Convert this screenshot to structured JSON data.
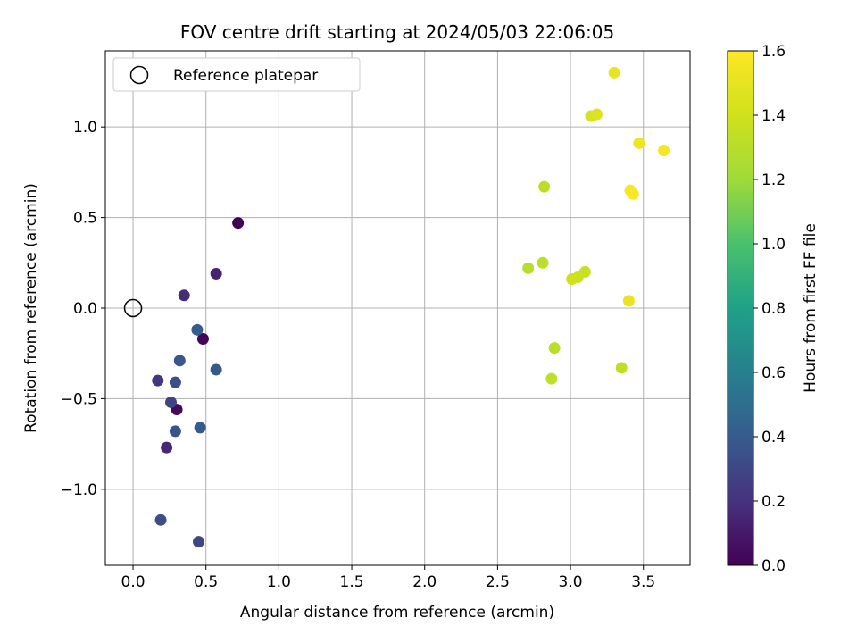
{
  "chart_data": {
    "type": "scatter",
    "title": "FOV centre drift starting at 2024/05/03 22:06:05",
    "xlabel": "Angular distance from reference (arcmin)",
    "ylabel": "Rotation from reference (arcmin)",
    "xlim": [
      -0.19,
      3.82
    ],
    "ylim": [
      -1.42,
      1.42
    ],
    "xticks": [
      0.0,
      0.5,
      1.0,
      1.5,
      2.0,
      2.5,
      3.0,
      3.5
    ],
    "xtick_labels": [
      "0.0",
      "0.5",
      "1.0",
      "1.5",
      "2.0",
      "2.5",
      "3.0",
      "3.5"
    ],
    "yticks": [
      -1.0,
      -0.5,
      0.0,
      0.5,
      1.0
    ],
    "ytick_labels": [
      "−1.0",
      "−0.5",
      "0.0",
      "0.5",
      "1.0"
    ],
    "grid": true,
    "legend": {
      "position": "top-left",
      "entries": [
        "Reference platepar"
      ]
    },
    "reference": {
      "x": 0.0,
      "y": 0.0
    },
    "colorbar": {
      "label": "Hours from first FF file",
      "range": [
        0.0,
        1.6
      ],
      "ticks": [
        0.0,
        0.2,
        0.4,
        0.6,
        0.8,
        1.0,
        1.2,
        1.4,
        1.6
      ],
      "tick_labels": [
        "0.0",
        "0.2",
        "0.4",
        "0.6",
        "0.8",
        "1.0",
        "1.2",
        "1.4",
        "1.6"
      ],
      "colormap": "viridis"
    },
    "points": [
      {
        "x": 0.72,
        "y": 0.47,
        "h": 0.0
      },
      {
        "x": 0.48,
        "y": -0.17,
        "h": 0.02
      },
      {
        "x": 0.3,
        "y": -0.56,
        "h": 0.04
      },
      {
        "x": 0.57,
        "y": 0.19,
        "h": 0.14
      },
      {
        "x": 0.35,
        "y": 0.07,
        "h": 0.18
      },
      {
        "x": 0.23,
        "y": -0.77,
        "h": 0.16
      },
      {
        "x": 0.17,
        "y": -0.4,
        "h": 0.22
      },
      {
        "x": 0.26,
        "y": -0.52,
        "h": 0.28
      },
      {
        "x": 0.45,
        "y": -1.29,
        "h": 0.3
      },
      {
        "x": 0.19,
        "y": -1.17,
        "h": 0.33
      },
      {
        "x": 0.29,
        "y": -0.41,
        "h": 0.34
      },
      {
        "x": 0.29,
        "y": -0.68,
        "h": 0.36
      },
      {
        "x": 0.32,
        "y": -0.29,
        "h": 0.38
      },
      {
        "x": 0.57,
        "y": -0.34,
        "h": 0.38
      },
      {
        "x": 0.46,
        "y": -0.66,
        "h": 0.39
      },
      {
        "x": 0.44,
        "y": -0.12,
        "h": 0.4
      },
      {
        "x": 2.71,
        "y": 0.22,
        "h": 1.3
      },
      {
        "x": 2.81,
        "y": 0.25,
        "h": 1.31
      },
      {
        "x": 2.82,
        "y": 0.67,
        "h": 1.32
      },
      {
        "x": 2.89,
        "y": -0.22,
        "h": 1.32
      },
      {
        "x": 2.87,
        "y": -0.39,
        "h": 1.33
      },
      {
        "x": 3.35,
        "y": -0.33,
        "h": 1.33
      },
      {
        "x": 3.1,
        "y": 0.2,
        "h": 1.36
      },
      {
        "x": 3.05,
        "y": 0.17,
        "h": 1.38
      },
      {
        "x": 3.01,
        "y": 0.16,
        "h": 1.4
      },
      {
        "x": 3.14,
        "y": 1.06,
        "h": 1.44
      },
      {
        "x": 3.18,
        "y": 1.07,
        "h": 1.46
      },
      {
        "x": 3.3,
        "y": 1.3,
        "h": 1.5
      },
      {
        "x": 3.4,
        "y": 0.04,
        "h": 1.52
      },
      {
        "x": 3.47,
        "y": 0.91,
        "h": 1.53
      },
      {
        "x": 3.64,
        "y": 0.87,
        "h": 1.56
      },
      {
        "x": 3.41,
        "y": 0.65,
        "h": 1.57
      },
      {
        "x": 3.43,
        "y": 0.63,
        "h": 1.58
      }
    ]
  }
}
